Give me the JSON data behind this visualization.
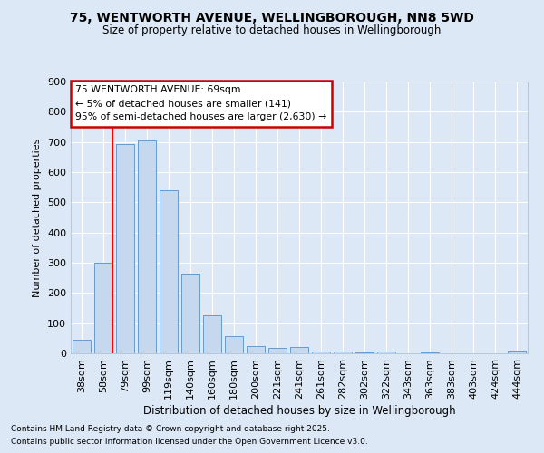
{
  "title": "75, WENTWORTH AVENUE, WELLINGBOROUGH, NN8 5WD",
  "subtitle": "Size of property relative to detached houses in Wellingborough",
  "xlabel": "Distribution of detached houses by size in Wellingborough",
  "ylabel": "Number of detached properties",
  "bar_labels": [
    "38sqm",
    "58sqm",
    "79sqm",
    "99sqm",
    "119sqm",
    "140sqm",
    "160sqm",
    "180sqm",
    "200sqm",
    "221sqm",
    "241sqm",
    "261sqm",
    "282sqm",
    "302sqm",
    "322sqm",
    "343sqm",
    "363sqm",
    "383sqm",
    "403sqm",
    "424sqm",
    "444sqm"
  ],
  "bar_values": [
    45,
    300,
    693,
    705,
    540,
    265,
    125,
    57,
    25,
    17,
    20,
    5,
    7,
    2,
    5,
    1,
    2,
    0,
    1,
    0,
    8
  ],
  "bar_color": "#c5d8ed",
  "bar_edge_color": "#6699cc",
  "background_color": "#dce8f5",
  "grid_color": "#ffffff",
  "red_line_x": 1.42,
  "annotation_text": "75 WENTWORTH AVENUE: 69sqm\n← 5% of detached houses are smaller (141)\n95% of semi-detached houses are larger (2,630) →",
  "annotation_box_color": "#ffffff",
  "annotation_box_edge": "#cc0000",
  "ylim": [
    0,
    900
  ],
  "footnote1": "Contains HM Land Registry data © Crown copyright and database right 2025.",
  "footnote2": "Contains public sector information licensed under the Open Government Licence v3.0."
}
